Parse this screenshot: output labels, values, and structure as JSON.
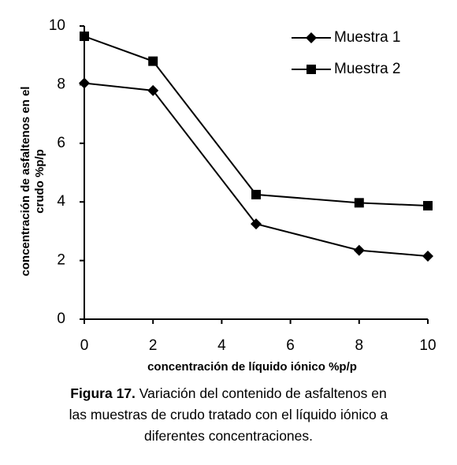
{
  "chart_data": {
    "type": "line",
    "x": [
      0,
      2,
      5,
      8,
      10
    ],
    "series": [
      {
        "name": "Muestra 1",
        "color": "#000000",
        "marker": "diamond",
        "values": [
          8.05,
          7.8,
          3.25,
          2.35,
          2.15
        ]
      },
      {
        "name": "Muestra 2",
        "color": "#000000",
        "marker": "square",
        "values": [
          9.65,
          8.8,
          4.25,
          3.97,
          3.87
        ]
      }
    ],
    "xlim": [
      0,
      10
    ],
    "xticks": [
      0,
      2,
      4,
      6,
      8,
      10
    ],
    "ylim": [
      0,
      10
    ],
    "yticks": [
      0,
      2,
      4,
      6,
      8,
      10
    ],
    "xlabel": "concentración de líquido iónico  %p/p",
    "ylabel": [
      "concentración de asfaltenos en el",
      "crudo  %p/p"
    ],
    "legend": "upper right",
    "grid": false
  },
  "caption": {
    "label": "Figura 17.",
    "lines": [
      "Variación del contenido de asfaltenos en",
      "las muestras de crudo tratado con el líquido iónico a",
      "diferentes concentraciones."
    ]
  }
}
